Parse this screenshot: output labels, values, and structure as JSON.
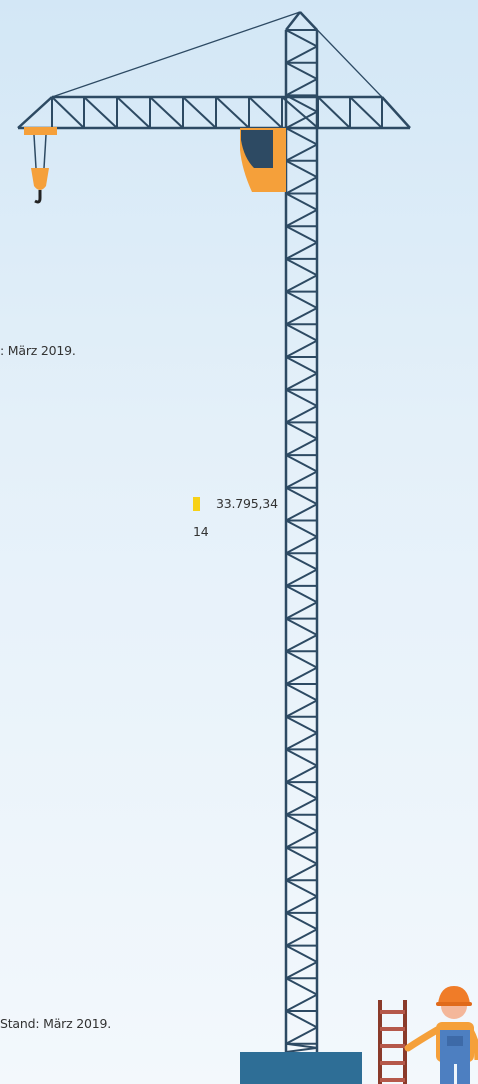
{
  "texts": {
    "note_top": ": März 2019.",
    "value_main": "33.795,34",
    "value_sub": "14",
    "note_bottom": "Stand: März 2019."
  }
}
